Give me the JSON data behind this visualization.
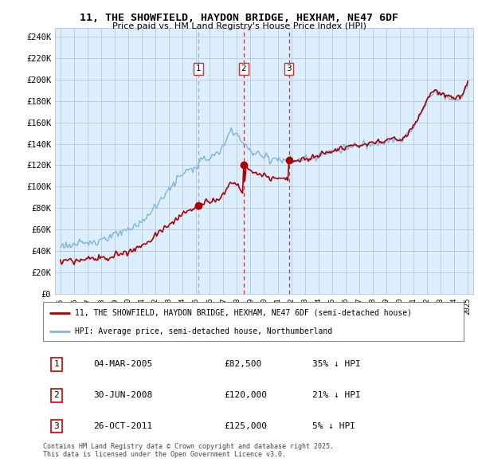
{
  "title": "11, THE SHOWFIELD, HAYDON BRIDGE, HEXHAM, NE47 6DF",
  "subtitle": "Price paid vs. HM Land Registry's House Price Index (HPI)",
  "legend_line1": "11, THE SHOWFIELD, HAYDON BRIDGE, HEXHAM, NE47 6DF (semi-detached house)",
  "legend_line2": "HPI: Average price, semi-detached house, Northumberland",
  "footer": "Contains HM Land Registry data © Crown copyright and database right 2025.\nThis data is licensed under the Open Government Licence v3.0.",
  "transactions": [
    {
      "num": 1,
      "date": "04-MAR-2005",
      "price": "£82,500",
      "pct": "35% ↓ HPI",
      "year": 2005.17,
      "value": 82500
    },
    {
      "num": 2,
      "date": "30-JUN-2008",
      "price": "£120,000",
      "pct": "21% ↓ HPI",
      "year": 2008.5,
      "value": 120000
    },
    {
      "num": 3,
      "date": "26-OCT-2011",
      "price": "£125,000",
      "pct": "5% ↓ HPI",
      "year": 2011.82,
      "value": 125000
    }
  ],
  "price_paid_color": "#aa0000",
  "hpi_color": "#7fb5e0",
  "vline1_color": "#aaaaaa",
  "vline23_color": "#cc3333",
  "marker_box_color": "#cc0000",
  "ylim_max": 240000,
  "ytick_step": 20000,
  "background_color": "#ffffff",
  "plot_bg_color": "#ddeeff",
  "grid_color": "#bbccdd"
}
